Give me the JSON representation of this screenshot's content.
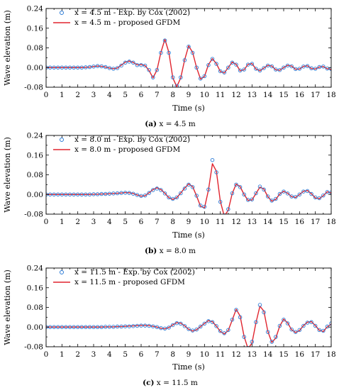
{
  "figure": {
    "panels": [
      {
        "panel_id": "a",
        "caption": {
          "label": "(a)",
          "text": "x = 4.5 m"
        },
        "legend": {
          "exp": "x = 4.5 m - Exp. by Cox (2002)",
          "model": "x = 4.5 m - proposed GFDM"
        }
      },
      {
        "panel_id": "b",
        "caption": {
          "label": "(b)",
          "text": "x = 8.0 m"
        },
        "legend": {
          "exp": "x = 8.0 m - Exp. by Cox (2002)",
          "model": "x = 8.0 m - proposed GFDM"
        }
      },
      {
        "panel_id": "c",
        "caption": {
          "label": "(c)",
          "text": "x = 11.5 m"
        },
        "legend": {
          "exp": "x = 11.5 m - Exp. by Cox (2002)",
          "model": "x = 11.5 m - proposed GFDM"
        }
      }
    ]
  },
  "colors": {
    "experiment": "#2b7bd6",
    "model": "#e0242e",
    "axis": "#000000"
  },
  "chart_data": [
    {
      "type": "line",
      "xlabel": "Time (s)",
      "ylabel": "Wave elevation (m)",
      "xlim": [
        0,
        18
      ],
      "ylim": [
        -0.08,
        0.24
      ],
      "xticks": [
        0,
        1,
        2,
        3,
        4,
        5,
        6,
        7,
        8,
        9,
        10,
        11,
        12,
        13,
        14,
        15,
        16,
        17,
        18
      ],
      "yticks": [
        -0.08,
        0.0,
        0.08,
        0.16,
        0.24
      ],
      "yticklabels": [
        "-0.08",
        "0.00",
        "0.08",
        "0.16",
        "0.24"
      ],
      "series": [
        {
          "name": "x = 4.5 m - Exp. by Cox (2002)",
          "marker": "circle",
          "x": [
            0,
            0.25,
            0.5,
            0.75,
            1,
            1.25,
            1.5,
            1.75,
            2,
            2.25,
            2.5,
            2.75,
            3,
            3.25,
            3.5,
            3.75,
            4,
            4.25,
            4.5,
            4.75,
            5,
            5.25,
            5.5,
            5.75,
            6,
            6.25,
            6.5,
            6.75,
            7,
            7.25,
            7.5,
            7.75,
            8,
            8.25,
            8.5,
            8.75,
            9,
            9.25,
            9.5,
            9.75,
            10,
            10.25,
            10.5,
            10.75,
            11,
            11.25,
            11.5,
            11.75,
            12,
            12.25,
            12.5,
            12.75,
            13,
            13.25,
            13.5,
            13.75,
            14,
            14.25,
            14.5,
            14.75,
            15,
            15.25,
            15.5,
            15.75,
            16,
            16.25,
            16.5,
            16.75,
            17,
            17.25,
            17.5,
            17.75,
            18
          ],
          "values": [
            0,
            0,
            0,
            0,
            0,
            0,
            0,
            0,
            0,
            0,
            0.001,
            0.002,
            0.004,
            0.006,
            0.005,
            0.002,
            -0.002,
            -0.005,
            -0.002,
            0.008,
            0.02,
            0.024,
            0.02,
            0.01,
            0.01,
            0.008,
            -0.01,
            -0.04,
            -0.01,
            0.06,
            0.11,
            0.06,
            -0.04,
            -0.075,
            -0.04,
            0.03,
            0.085,
            0.06,
            0,
            -0.045,
            -0.035,
            0.01,
            0.035,
            0.015,
            -0.015,
            -0.02,
            0,
            0.02,
            0.012,
            -0.012,
            -0.008,
            0.012,
            0.015,
            -0.005,
            -0.012,
            -0.002,
            0.008,
            0.005,
            -0.008,
            -0.01,
            0,
            0.008,
            0.005,
            -0.006,
            -0.005,
            0.004,
            0.006,
            -0.003,
            -0.005,
            0.002,
            0.004,
            -0.004,
            -0.006
          ]
        },
        {
          "name": "x = 4.5 m - proposed GFDM",
          "marker": "line",
          "x": [
            0,
            0.25,
            0.5,
            0.75,
            1,
            1.25,
            1.5,
            1.75,
            2,
            2.25,
            2.5,
            2.75,
            3,
            3.25,
            3.5,
            3.75,
            4,
            4.25,
            4.5,
            4.75,
            5,
            5.25,
            5.5,
            5.75,
            6,
            6.25,
            6.5,
            6.75,
            7,
            7.25,
            7.5,
            7.75,
            8,
            8.25,
            8.5,
            8.75,
            9,
            9.25,
            9.5,
            9.75,
            10,
            10.25,
            10.5,
            10.75,
            11,
            11.25,
            11.5,
            11.75,
            12,
            12.25,
            12.5,
            12.75,
            13,
            13.25,
            13.5,
            13.75,
            14,
            14.25,
            14.5,
            14.75,
            15,
            15.25,
            15.5,
            15.75,
            16,
            16.25,
            16.5,
            16.75,
            17,
            17.25,
            17.5,
            17.75,
            18
          ],
          "values": [
            0,
            0,
            0,
            0,
            0,
            0,
            0,
            0,
            0,
            0,
            0.001,
            0.002,
            0.004,
            0.006,
            0.005,
            0.002,
            -0.002,
            -0.005,
            -0.002,
            0.01,
            0.022,
            0.026,
            0.021,
            0.011,
            0.012,
            0.008,
            -0.012,
            -0.042,
            -0.01,
            0.062,
            0.115,
            0.062,
            -0.042,
            -0.078,
            -0.042,
            0.032,
            0.088,
            0.062,
            0,
            -0.047,
            -0.036,
            0.012,
            0.036,
            0.016,
            -0.016,
            -0.022,
            0,
            0.022,
            0.013,
            -0.013,
            -0.009,
            0.013,
            0.016,
            -0.006,
            -0.013,
            -0.002,
            0.009,
            0.006,
            -0.009,
            -0.011,
            0,
            0.009,
            0.006,
            -0.007,
            -0.006,
            0.005,
            0.007,
            -0.004,
            -0.006,
            0.002,
            0.004,
            -0.005,
            -0.008
          ]
        }
      ]
    },
    {
      "type": "line",
      "xlabel": "Time (s)",
      "ylabel": "Wave elevation (m)",
      "xlim": [
        0,
        18
      ],
      "ylim": [
        -0.08,
        0.24
      ],
      "xticks": [
        0,
        1,
        2,
        3,
        4,
        5,
        6,
        7,
        8,
        9,
        10,
        11,
        12,
        13,
        14,
        15,
        16,
        17,
        18
      ],
      "yticks": [
        -0.08,
        0.0,
        0.08,
        0.16,
        0.24
      ],
      "yticklabels": [
        "-0.08",
        "0.00",
        "0.08",
        "0.16",
        "0.24"
      ],
      "series": [
        {
          "name": "x = 8.0 m - Exp. by Cox (2002)",
          "marker": "circle",
          "x": [
            0,
            0.25,
            0.5,
            0.75,
            1,
            1.25,
            1.5,
            1.75,
            2,
            2.25,
            2.5,
            2.75,
            3,
            3.25,
            3.5,
            3.75,
            4,
            4.25,
            4.5,
            4.75,
            5,
            5.25,
            5.5,
            5.75,
            6,
            6.25,
            6.5,
            6.75,
            7,
            7.25,
            7.5,
            7.75,
            8,
            8.25,
            8.5,
            8.75,
            9,
            9.25,
            9.5,
            9.75,
            10,
            10.25,
            10.5,
            10.75,
            11,
            11.25,
            11.5,
            11.75,
            12,
            12.25,
            12.5,
            12.75,
            13,
            13.25,
            13.5,
            13.75,
            14,
            14.25,
            14.5,
            14.75,
            15,
            15.25,
            15.5,
            15.75,
            16,
            16.25,
            16.5,
            16.75,
            17,
            17.25,
            17.5,
            17.75,
            18
          ],
          "values": [
            0,
            0,
            0,
            0,
            0,
            0,
            0,
            0,
            0,
            0,
            0,
            0,
            0.001,
            0.001,
            0.002,
            0.002,
            0.003,
            0.004,
            0.005,
            0.006,
            0.007,
            0.006,
            0.003,
            -0.002,
            -0.006,
            -0.004,
            0.006,
            0.018,
            0.024,
            0.018,
            0.004,
            -0.012,
            -0.018,
            -0.012,
            0.005,
            0.024,
            0.04,
            0.03,
            -0.005,
            -0.045,
            -0.05,
            0.02,
            0.14,
            0.09,
            -0.03,
            -0.085,
            -0.06,
            0.005,
            0.04,
            0.03,
            0,
            -0.022,
            -0.02,
            0.005,
            0.032,
            0.02,
            -0.008,
            -0.025,
            -0.018,
            0.002,
            0.012,
            0.004,
            -0.008,
            -0.01,
            0,
            0.012,
            0.014,
            0.002,
            -0.012,
            -0.015,
            -0.004,
            0.01,
            0.008
          ]
        },
        {
          "name": "x = 8.0 m - proposed GFDM",
          "marker": "line",
          "x": [
            0,
            0.25,
            0.5,
            0.75,
            1,
            1.25,
            1.5,
            1.75,
            2,
            2.25,
            2.5,
            2.75,
            3,
            3.25,
            3.5,
            3.75,
            4,
            4.25,
            4.5,
            4.75,
            5,
            5.25,
            5.5,
            5.75,
            6,
            6.25,
            6.5,
            6.75,
            7,
            7.25,
            7.5,
            7.75,
            8,
            8.25,
            8.5,
            8.75,
            9,
            9.25,
            9.5,
            9.75,
            10,
            10.25,
            10.5,
            10.75,
            11,
            11.25,
            11.5,
            11.75,
            12,
            12.25,
            12.5,
            12.75,
            13,
            13.25,
            13.5,
            13.75,
            14,
            14.25,
            14.5,
            14.75,
            15,
            15.25,
            15.5,
            15.75,
            16,
            16.25,
            16.5,
            16.75,
            17,
            17.25,
            17.5,
            17.75,
            18
          ],
          "values": [
            0,
            0,
            0,
            0,
            0,
            0,
            0,
            0,
            0,
            0,
            0,
            0,
            0.001,
            0.001,
            0.002,
            0.002,
            0.003,
            0.004,
            0.005,
            0.006,
            0.008,
            0.007,
            0.004,
            -0.002,
            -0.007,
            -0.005,
            0.007,
            0.02,
            0.027,
            0.02,
            0.005,
            -0.013,
            -0.02,
            -0.013,
            0.006,
            0.026,
            0.043,
            0.032,
            -0.006,
            -0.048,
            -0.055,
            0.018,
            0.125,
            0.095,
            -0.028,
            -0.088,
            -0.064,
            0.004,
            0.042,
            0.032,
            0,
            -0.024,
            -0.022,
            0.004,
            0.03,
            0.022,
            -0.009,
            -0.027,
            -0.02,
            0.002,
            0.013,
            0.005,
            -0.009,
            -0.012,
            0,
            0.013,
            0.016,
            0.003,
            -0.014,
            -0.017,
            -0.005,
            0.011,
            0.006
          ]
        }
      ]
    },
    {
      "type": "line",
      "xlabel": "Time (s)",
      "ylabel": "Wave elevation (m)",
      "xlim": [
        0,
        18
      ],
      "ylim": [
        -0.08,
        0.24
      ],
      "xticks": [
        0,
        1,
        2,
        3,
        4,
        5,
        6,
        7,
        8,
        9,
        10,
        11,
        12,
        13,
        14,
        15,
        16,
        17,
        18
      ],
      "yticks": [
        -0.08,
        0.0,
        0.08,
        0.16,
        0.24
      ],
      "yticklabels": [
        "-0.08",
        "0.00",
        "0.08",
        "0.16",
        "0.24"
      ],
      "series": [
        {
          "name": "x = 11.5 m - Exp. by Cox (2002)",
          "marker": "circle",
          "x": [
            0,
            0.25,
            0.5,
            0.75,
            1,
            1.25,
            1.5,
            1.75,
            2,
            2.25,
            2.5,
            2.75,
            3,
            3.25,
            3.5,
            3.75,
            4,
            4.25,
            4.5,
            4.75,
            5,
            5.25,
            5.5,
            5.75,
            6,
            6.25,
            6.5,
            6.75,
            7,
            7.25,
            7.5,
            7.75,
            8,
            8.25,
            8.5,
            8.75,
            9,
            9.25,
            9.5,
            9.75,
            10,
            10.25,
            10.5,
            10.75,
            11,
            11.25,
            11.5,
            11.75,
            12,
            12.25,
            12.5,
            12.75,
            13,
            13.25,
            13.5,
            13.75,
            14,
            14.25,
            14.5,
            14.75,
            15,
            15.25,
            15.5,
            15.75,
            16,
            16.25,
            16.5,
            16.75,
            17,
            17.25,
            17.5,
            17.75,
            18
          ],
          "values": [
            0,
            0,
            0,
            0,
            0,
            0,
            0,
            0,
            0,
            0,
            0,
            0,
            0,
            0,
            0,
            0.001,
            0.001,
            0.001,
            0.002,
            0.002,
            0.003,
            0.003,
            0.004,
            0.005,
            0.006,
            0.006,
            0.005,
            0.003,
            0,
            -0.004,
            -0.006,
            -0.002,
            0.008,
            0.016,
            0.014,
            0.004,
            -0.008,
            -0.014,
            -0.01,
            0.002,
            0.014,
            0.024,
            0.02,
            0.004,
            -0.016,
            -0.025,
            -0.012,
            0.03,
            0.07,
            0.04,
            -0.04,
            -0.085,
            -0.06,
            0.02,
            0.09,
            0.06,
            -0.02,
            -0.06,
            -0.04,
            0.005,
            0.03,
            0.015,
            -0.01,
            -0.02,
            -0.012,
            0.005,
            0.018,
            0.02,
            0.005,
            -0.012,
            -0.015,
            0.002,
            0.015
          ]
        },
        {
          "name": "x = 11.5 m - proposed GFDM",
          "marker": "line",
          "x": [
            0,
            0.25,
            0.5,
            0.75,
            1,
            1.25,
            1.5,
            1.75,
            2,
            2.25,
            2.5,
            2.75,
            3,
            3.25,
            3.5,
            3.75,
            4,
            4.25,
            4.5,
            4.75,
            5,
            5.25,
            5.5,
            5.75,
            6,
            6.25,
            6.5,
            6.75,
            7,
            7.25,
            7.5,
            7.75,
            8,
            8.25,
            8.5,
            8.75,
            9,
            9.25,
            9.5,
            9.75,
            10,
            10.25,
            10.5,
            10.75,
            11,
            11.25,
            11.5,
            11.75,
            12,
            12.25,
            12.5,
            12.75,
            13,
            13.25,
            13.5,
            13.75,
            14,
            14.25,
            14.5,
            14.75,
            15,
            15.25,
            15.5,
            15.75,
            16,
            16.25,
            16.5,
            16.75,
            17,
            17.25,
            17.5,
            17.75,
            18
          ],
          "values": [
            0,
            0,
            0,
            0,
            0,
            0,
            0,
            0,
            0,
            0,
            0,
            0,
            0,
            0,
            0,
            0.001,
            0.001,
            0.001,
            0.002,
            0.002,
            0.003,
            0.004,
            0.005,
            0.006,
            0.007,
            0.007,
            0.006,
            0.003,
            0,
            -0.005,
            -0.007,
            -0.002,
            0.009,
            0.018,
            0.016,
            0.005,
            -0.009,
            -0.016,
            -0.011,
            0.002,
            0.015,
            0.026,
            0.022,
            0.004,
            -0.018,
            -0.028,
            -0.014,
            0.028,
            0.072,
            0.045,
            -0.038,
            -0.088,
            -0.065,
            0.018,
            0.085,
            0.065,
            -0.018,
            -0.062,
            -0.045,
            0.004,
            0.032,
            0.017,
            -0.011,
            -0.022,
            -0.014,
            0.006,
            0.02,
            0.022,
            0.006,
            -0.013,
            -0.018,
            0.001,
            0.012
          ]
        }
      ]
    }
  ]
}
